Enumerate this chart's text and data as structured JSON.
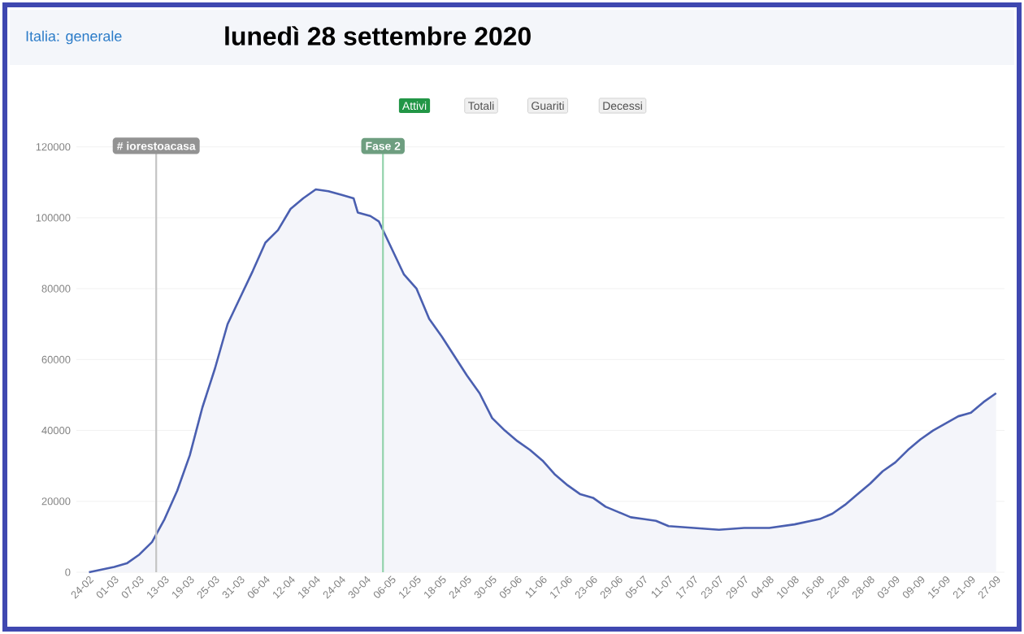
{
  "chart_data": {
    "type": "area",
    "title": "lunedì 28 settembre 2020",
    "subtitle": "Italia: generale",
    "annotations": [
      "Attivi",
      "Totali",
      "Guariti",
      "Decessi"
    ],
    "x": [
      "2020-02-24",
      "2020-02-28",
      "2020-03-01",
      "2020-03-04",
      "2020-03-07",
      "2020-03-10",
      "2020-03-13",
      "2020-03-16",
      "2020-03-19",
      "2020-03-22",
      "2020-03-25",
      "2020-03-28",
      "2020-03-31",
      "2020-04-03",
      "2020-04-06",
      "2020-04-09",
      "2020-04-12",
      "2020-04-15",
      "2020-04-18",
      "2020-04-21",
      "2020-04-24",
      "2020-04-27",
      "2020-04-28",
      "2020-05-01",
      "2020-05-03",
      "2020-05-06",
      "2020-05-09",
      "2020-05-12",
      "2020-05-15",
      "2020-05-18",
      "2020-05-21",
      "2020-05-24",
      "2020-05-27",
      "2020-05-30",
      "2020-06-02",
      "2020-06-05",
      "2020-06-08",
      "2020-06-11",
      "2020-06-14",
      "2020-06-17",
      "2020-06-20",
      "2020-06-23",
      "2020-06-26",
      "2020-06-29",
      "2020-07-02",
      "2020-07-05",
      "2020-07-08",
      "2020-07-11",
      "2020-07-17",
      "2020-07-23",
      "2020-07-29",
      "2020-08-04",
      "2020-08-10",
      "2020-08-16",
      "2020-08-19",
      "2020-08-22",
      "2020-08-25",
      "2020-08-28",
      "2020-08-31",
      "2020-09-03",
      "2020-09-06",
      "2020-09-09",
      "2020-09-12",
      "2020-09-15",
      "2020-09-18",
      "2020-09-21",
      "2020-09-24",
      "2020-09-27"
    ],
    "series": [
      {
        "color": "#4a5fb0",
        "values": [
          0,
          1000,
          1500,
          2500,
          5000,
          8500,
          15000,
          23000,
          33000,
          46500,
          57500,
          70000,
          77500,
          85000,
          93000,
          96500,
          102500,
          105500,
          108000,
          107500,
          106500,
          105500,
          101500,
          100500,
          99000,
          91500,
          84000,
          80000,
          71500,
          66500,
          61000,
          55500,
          50500,
          43500,
          40000,
          37000,
          34500,
          31500,
          27500,
          24500,
          22000,
          21000,
          18500,
          17000,
          15500,
          15000,
          14500,
          13000,
          12500,
          12000,
          12500,
          12500,
          13500,
          15000,
          16500,
          19000,
          22000,
          25000,
          28500,
          31000,
          34500,
          37500,
          40000,
          42000,
          44000,
          45000,
          48000,
          50500
        ]
      }
    ],
    "xlim": [
      "2020-02-21",
      "2020-09-29"
    ],
    "xticks": [
      {
        "value": "2020-02-24",
        "label": "24-02"
      },
      {
        "value": "2020-03-01",
        "label": "01-03"
      },
      {
        "value": "2020-03-07",
        "label": "07-03"
      },
      {
        "value": "2020-03-13",
        "label": "13-03"
      },
      {
        "value": "2020-03-19",
        "label": "19-03"
      },
      {
        "value": "2020-03-25",
        "label": "25-03"
      },
      {
        "value": "2020-03-31",
        "label": "31-03"
      },
      {
        "value": "2020-04-06",
        "label": "06-04"
      },
      {
        "value": "2020-04-12",
        "label": "12-04"
      },
      {
        "value": "2020-04-18",
        "label": "18-04"
      },
      {
        "value": "2020-04-24",
        "label": "24-04"
      },
      {
        "value": "2020-04-30",
        "label": "30-04"
      },
      {
        "value": "2020-05-06",
        "label": "06-05"
      },
      {
        "value": "2020-05-12",
        "label": "12-05"
      },
      {
        "value": "2020-05-18",
        "label": "18-05"
      },
      {
        "value": "2020-05-24",
        "label": "24-05"
      },
      {
        "value": "2020-05-30",
        "label": "30-05"
      },
      {
        "value": "2020-06-05",
        "label": "05-06"
      },
      {
        "value": "2020-06-11",
        "label": "11-06"
      },
      {
        "value": "2020-06-17",
        "label": "17-06"
      },
      {
        "value": "2020-06-23",
        "label": "23-06"
      },
      {
        "value": "2020-06-29",
        "label": "29-06"
      },
      {
        "value": "2020-07-05",
        "label": "05-07"
      },
      {
        "value": "2020-07-11",
        "label": "11-07"
      },
      {
        "value": "2020-07-17",
        "label": "17-07"
      },
      {
        "value": "2020-07-23",
        "label": "23-07"
      },
      {
        "value": "2020-07-29",
        "label": "29-07"
      },
      {
        "value": "2020-08-04",
        "label": "04-08"
      },
      {
        "value": "2020-08-10",
        "label": "10-08"
      },
      {
        "value": "2020-08-16",
        "label": "16-08"
      },
      {
        "value": "2020-08-22",
        "label": "22-08"
      },
      {
        "value": "2020-08-28",
        "label": "28-08"
      },
      {
        "value": "2020-09-03",
        "label": "03-09"
      },
      {
        "value": "2020-09-09",
        "label": "09-09"
      },
      {
        "value": "2020-09-15",
        "label": "15-09"
      },
      {
        "value": "2020-09-21",
        "label": "21-09"
      },
      {
        "value": "2020-09-27",
        "label": "27-09"
      }
    ],
    "ylim": [
      0,
      122000
    ],
    "yticks": [
      0,
      20000,
      40000,
      60000,
      80000,
      100000,
      120000
    ],
    "grid": "y",
    "ref_lines": [
      {
        "axis": "x",
        "value": "2020-03-11",
        "label": "# iorestoacasa",
        "color": "#c4c4c4"
      },
      {
        "axis": "x",
        "value": "2020-05-04",
        "label": "Fase 2",
        "color": "#93d3ab"
      }
    ]
  }
}
